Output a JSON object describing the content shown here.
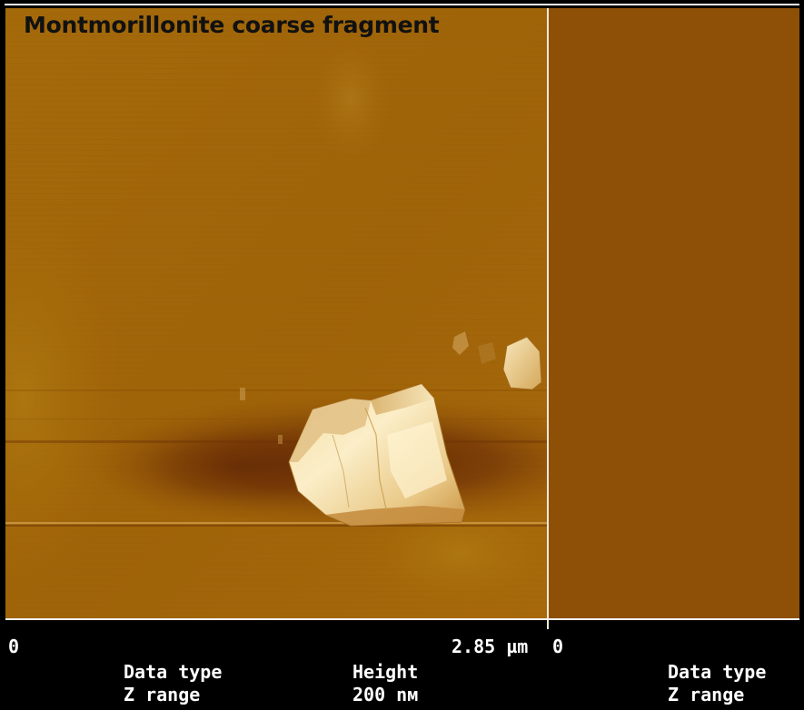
{
  "title": "Montmorillonite coarse fragment",
  "scale_bar": {
    "start": "0",
    "end": "2.85 µm",
    "right_start": "0"
  },
  "left_channel": {
    "label_1": "Data type",
    "label_2": "Z range"
  },
  "center_channel": {
    "value_1": "Height",
    "value_2": "200 nм"
  },
  "right_channel": {
    "label_1": "Data type",
    "label_2": "Z range"
  },
  "colors": {
    "background": "#000000",
    "afm_base": "#a56b0a",
    "afm_dark": "#6a2c05",
    "afm_bright": "#fff1c9",
    "right_panel": "#8e5006",
    "text": "#ffffff"
  }
}
